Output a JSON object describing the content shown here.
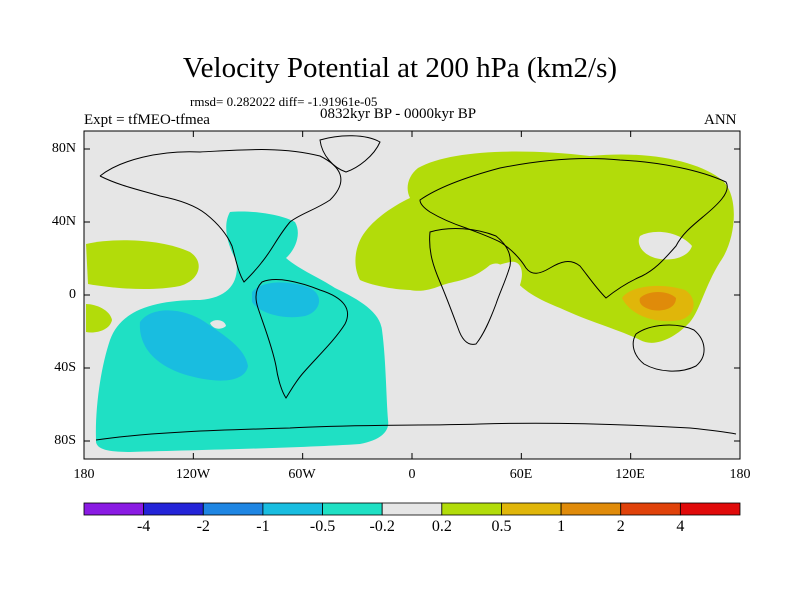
{
  "header": {
    "title": "Velocity Potential at 200 hPa (km2/s)",
    "stats": "rmsd= 0.282022 diff= -1.91961e-05",
    "experiment": "Expt = tfMEO-tfmea",
    "period": "0832kyr BP - 0000kyr BP",
    "season": "ANN"
  },
  "axes": {
    "lat_labels": [
      "80N",
      "40N",
      "0",
      "40S",
      "80S"
    ],
    "lon_labels": [
      "180",
      "120W",
      "60W",
      "0",
      "60E",
      "120E",
      "180"
    ]
  },
  "colorbar": {
    "colors": [
      "#8a1be3",
      "#2424d8",
      "#1f86e3",
      "#19bde0",
      "#1fe0c4",
      "#e6e6e6",
      "#b2dc0a",
      "#e0b60a",
      "#e08b0a",
      "#e0420a",
      "#e00a0a"
    ],
    "labels": [
      "-4",
      "-2",
      "-1",
      "-0.5",
      "-0.2",
      "0.2",
      "0.5",
      "1",
      "2",
      "4"
    ]
  },
  "map_colors": {
    "background": "#e6e6e6",
    "positive_02": "#b2dc0a",
    "negative_02": "#1fe0c4",
    "negative_05": "#19bde0",
    "positive_05": "#e0b60a",
    "positive_1": "#e08b0a",
    "coast": "#000000"
  }
}
